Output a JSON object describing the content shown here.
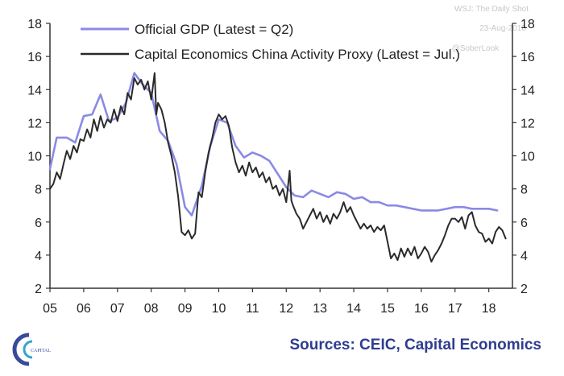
{
  "colors": {
    "gdp": "#8a8ae6",
    "proxy": "#2a2a2a",
    "source": "#2e3d8f",
    "logo": "#3a4a9a",
    "logo_accent": "#35a6c8"
  },
  "watermark": {
    "line1": "WSJ: The Daily Shot",
    "line2": "23-Aug-2018",
    "line3": "@SoberLook"
  },
  "source": "Sources: CEIC, Capital Economics",
  "logo": {
    "label": "CAPITAL"
  },
  "chart_data": {
    "type": "line",
    "title": "",
    "xlabel": "",
    "ylabel": "",
    "xlim": [
      2005.0,
      2018.7
    ],
    "ylim": [
      2,
      18
    ],
    "x_ticks": [
      2005,
      2006,
      2007,
      2008,
      2009,
      2010,
      2011,
      2012,
      2013,
      2014,
      2015,
      2016,
      2017,
      2018
    ],
    "x_tick_labels": [
      "05",
      "06",
      "07",
      "08",
      "09",
      "10",
      "11",
      "12",
      "13",
      "14",
      "15",
      "16",
      "17",
      "18"
    ],
    "y_ticks": [
      2,
      4,
      6,
      8,
      10,
      12,
      14,
      16,
      18
    ],
    "y_tick_labels": [
      "2",
      "4",
      "6",
      "8",
      "10",
      "12",
      "14",
      "16",
      "18"
    ],
    "legend": {
      "position": "top-left"
    },
    "series": [
      {
        "name": "Official GDP (Latest = Q2)",
        "key": "gdp",
        "points": [
          [
            2005.0,
            9.2
          ],
          [
            2005.2,
            11.1
          ],
          [
            2005.5,
            11.1
          ],
          [
            2005.75,
            10.8
          ],
          [
            2006.0,
            12.4
          ],
          [
            2006.25,
            12.5
          ],
          [
            2006.5,
            13.7
          ],
          [
            2006.75,
            12.1
          ],
          [
            2007.0,
            12.3
          ],
          [
            2007.25,
            13.2
          ],
          [
            2007.5,
            15.0
          ],
          [
            2007.75,
            14.3
          ],
          [
            2008.0,
            13.8
          ],
          [
            2008.25,
            11.5
          ],
          [
            2008.5,
            10.9
          ],
          [
            2008.75,
            9.5
          ],
          [
            2009.0,
            6.9
          ],
          [
            2009.2,
            6.4
          ],
          [
            2009.5,
            8.2
          ],
          [
            2009.75,
            10.6
          ],
          [
            2010.0,
            12.2
          ],
          [
            2010.25,
            12.0
          ],
          [
            2010.5,
            10.6
          ],
          [
            2010.75,
            9.9
          ],
          [
            2011.0,
            10.2
          ],
          [
            2011.25,
            10.0
          ],
          [
            2011.5,
            9.7
          ],
          [
            2011.75,
            8.9
          ],
          [
            2012.0,
            8.1
          ],
          [
            2012.25,
            7.6
          ],
          [
            2012.5,
            7.5
          ],
          [
            2012.75,
            7.9
          ],
          [
            2013.0,
            7.7
          ],
          [
            2013.25,
            7.5
          ],
          [
            2013.5,
            7.8
          ],
          [
            2013.75,
            7.7
          ],
          [
            2014.0,
            7.4
          ],
          [
            2014.25,
            7.5
          ],
          [
            2014.5,
            7.2
          ],
          [
            2014.75,
            7.2
          ],
          [
            2015.0,
            7.0
          ],
          [
            2015.25,
            7.0
          ],
          [
            2015.5,
            6.9
          ],
          [
            2015.75,
            6.8
          ],
          [
            2016.0,
            6.7
          ],
          [
            2016.25,
            6.7
          ],
          [
            2016.5,
            6.7
          ],
          [
            2016.75,
            6.8
          ],
          [
            2017.0,
            6.9
          ],
          [
            2017.25,
            6.9
          ],
          [
            2017.5,
            6.8
          ],
          [
            2017.75,
            6.8
          ],
          [
            2018.0,
            6.8
          ],
          [
            2018.25,
            6.7
          ]
        ]
      },
      {
        "name": "Capital Economics China Activity Proxy (Latest = Jul.)",
        "key": "proxy",
        "points": [
          [
            2005.0,
            8.0
          ],
          [
            2005.1,
            8.3
          ],
          [
            2005.2,
            9.0
          ],
          [
            2005.3,
            8.6
          ],
          [
            2005.4,
            9.5
          ],
          [
            2005.5,
            10.3
          ],
          [
            2005.6,
            9.8
          ],
          [
            2005.7,
            10.6
          ],
          [
            2005.8,
            10.2
          ],
          [
            2005.9,
            11.0
          ],
          [
            2006.0,
            10.9
          ],
          [
            2006.1,
            11.6
          ],
          [
            2006.2,
            11.1
          ],
          [
            2006.3,
            12.2
          ],
          [
            2006.4,
            11.5
          ],
          [
            2006.5,
            12.4
          ],
          [
            2006.6,
            11.7
          ],
          [
            2006.7,
            12.2
          ],
          [
            2006.8,
            12.0
          ],
          [
            2006.9,
            12.8
          ],
          [
            2007.0,
            12.1
          ],
          [
            2007.1,
            13.0
          ],
          [
            2007.2,
            12.5
          ],
          [
            2007.3,
            13.8
          ],
          [
            2007.4,
            13.4
          ],
          [
            2007.5,
            14.7
          ],
          [
            2007.6,
            14.3
          ],
          [
            2007.7,
            14.6
          ],
          [
            2007.8,
            14.0
          ],
          [
            2007.9,
            14.5
          ],
          [
            2008.0,
            13.4
          ],
          [
            2008.1,
            15.0
          ],
          [
            2008.15,
            12.5
          ],
          [
            2008.2,
            13.2
          ],
          [
            2008.3,
            12.8
          ],
          [
            2008.4,
            12.0
          ],
          [
            2008.5,
            10.8
          ],
          [
            2008.6,
            10.0
          ],
          [
            2008.7,
            9.0
          ],
          [
            2008.8,
            7.5
          ],
          [
            2008.9,
            5.4
          ],
          [
            2009.0,
            5.2
          ],
          [
            2009.1,
            5.5
          ],
          [
            2009.2,
            5.0
          ],
          [
            2009.3,
            5.3
          ],
          [
            2009.4,
            7.8
          ],
          [
            2009.5,
            7.5
          ],
          [
            2009.6,
            9.0
          ],
          [
            2009.7,
            10.2
          ],
          [
            2009.8,
            11.0
          ],
          [
            2009.9,
            12.0
          ],
          [
            2010.0,
            12.5
          ],
          [
            2010.1,
            12.2
          ],
          [
            2010.2,
            12.4
          ],
          [
            2010.3,
            11.8
          ],
          [
            2010.4,
            10.5
          ],
          [
            2010.5,
            9.6
          ],
          [
            2010.6,
            9.0
          ],
          [
            2010.7,
            9.4
          ],
          [
            2010.8,
            8.8
          ],
          [
            2010.9,
            9.6
          ],
          [
            2011.0,
            9.0
          ],
          [
            2011.1,
            9.3
          ],
          [
            2011.2,
            8.7
          ],
          [
            2011.3,
            9.0
          ],
          [
            2011.4,
            8.4
          ],
          [
            2011.5,
            8.7
          ],
          [
            2011.6,
            8.0
          ],
          [
            2011.7,
            8.2
          ],
          [
            2011.8,
            7.6
          ],
          [
            2011.9,
            8.0
          ],
          [
            2012.0,
            7.2
          ],
          [
            2012.1,
            9.1
          ],
          [
            2012.15,
            7.3
          ],
          [
            2012.2,
            7.0
          ],
          [
            2012.3,
            6.5
          ],
          [
            2012.4,
            6.2
          ],
          [
            2012.5,
            5.6
          ],
          [
            2012.6,
            6.0
          ],
          [
            2012.7,
            6.4
          ],
          [
            2012.8,
            6.8
          ],
          [
            2012.9,
            6.2
          ],
          [
            2013.0,
            6.6
          ],
          [
            2013.1,
            6.0
          ],
          [
            2013.2,
            6.4
          ],
          [
            2013.3,
            5.9
          ],
          [
            2013.4,
            6.5
          ],
          [
            2013.5,
            6.2
          ],
          [
            2013.6,
            6.6
          ],
          [
            2013.7,
            7.2
          ],
          [
            2013.8,
            6.6
          ],
          [
            2013.9,
            6.9
          ],
          [
            2014.0,
            6.4
          ],
          [
            2014.1,
            6.0
          ],
          [
            2014.2,
            5.6
          ],
          [
            2014.3,
            5.9
          ],
          [
            2014.4,
            5.6
          ],
          [
            2014.5,
            5.8
          ],
          [
            2014.6,
            5.4
          ],
          [
            2014.7,
            5.7
          ],
          [
            2014.8,
            5.5
          ],
          [
            2014.9,
            5.8
          ],
          [
            2015.0,
            4.8
          ],
          [
            2015.1,
            3.8
          ],
          [
            2015.2,
            4.1
          ],
          [
            2015.3,
            3.7
          ],
          [
            2015.4,
            4.4
          ],
          [
            2015.5,
            3.9
          ],
          [
            2015.6,
            4.4
          ],
          [
            2015.7,
            4.0
          ],
          [
            2015.8,
            4.5
          ],
          [
            2015.9,
            3.8
          ],
          [
            2016.0,
            4.1
          ],
          [
            2016.1,
            4.5
          ],
          [
            2016.2,
            4.2
          ],
          [
            2016.3,
            3.6
          ],
          [
            2016.4,
            4.0
          ],
          [
            2016.5,
            4.3
          ],
          [
            2016.6,
            4.7
          ],
          [
            2016.7,
            5.2
          ],
          [
            2016.8,
            5.8
          ],
          [
            2016.9,
            6.2
          ],
          [
            2017.0,
            6.2
          ],
          [
            2017.1,
            6.0
          ],
          [
            2017.2,
            6.3
          ],
          [
            2017.3,
            5.6
          ],
          [
            2017.4,
            6.4
          ],
          [
            2017.5,
            6.6
          ],
          [
            2017.6,
            5.8
          ],
          [
            2017.7,
            5.4
          ],
          [
            2017.8,
            5.3
          ],
          [
            2017.9,
            4.8
          ],
          [
            2018.0,
            5.0
          ],
          [
            2018.1,
            4.7
          ],
          [
            2018.2,
            5.4
          ],
          [
            2018.3,
            5.7
          ],
          [
            2018.4,
            5.5
          ],
          [
            2018.5,
            5.0
          ]
        ]
      }
    ]
  }
}
